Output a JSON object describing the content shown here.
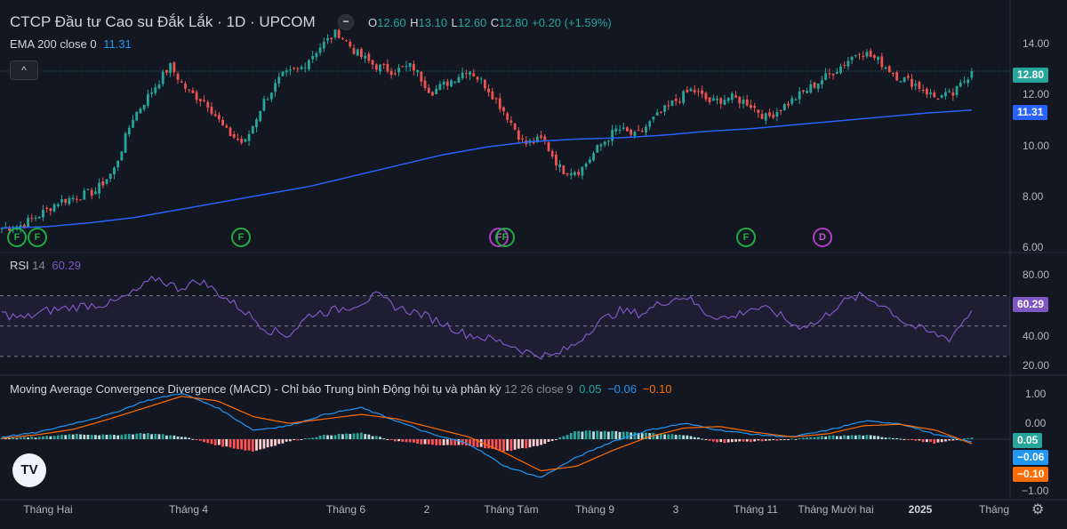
{
  "header": {
    "title": "CTCP Đầu tư Cao su Đắk Lắk · 1D · UPCOM",
    "ohlc": {
      "o_key": "O",
      "o": "12.60",
      "h_key": "H",
      "h": "13.10",
      "l_key": "L",
      "l": "12.60",
      "c_key": "C",
      "c": "12.80",
      "chg": "+0.20 (+1.59%)"
    },
    "ema_label": "EMA 200 close 0",
    "ema_value": "11.31",
    "collapse_icon": "chevron-up-icon",
    "minus_icon": "minus-icon"
  },
  "rsi_panel": {
    "label": "RSI",
    "params": "14",
    "value": "60.29"
  },
  "macd_panel": {
    "label": "Moving Average Convergence Divergence (MACD) - Chỉ báo Trung bình Động hội tụ và phân kỳ",
    "params": "12 26 close 9",
    "hist": "0.05",
    "macd": "−0.06",
    "signal": "−0.10"
  },
  "price_axis": {
    "ticks": [
      "14.00",
      "12.00",
      "10.00",
      "8.00",
      "6.00"
    ],
    "last": "12.80",
    "ema": "11.31"
  },
  "rsi_axis": {
    "ticks": [
      "80.00",
      "40.00",
      "20.00"
    ],
    "last": "60.29"
  },
  "macd_axis": {
    "ticks": [
      "1.00",
      "0.00",
      "−1.00"
    ],
    "hist_pill": "0.05",
    "macd_pill": "−0.06",
    "signal_pill": "−0.10"
  },
  "time_axis": {
    "labels": [
      "Tháng Hai",
      "Tháng 4",
      "Tháng 6",
      "2",
      "Tháng Tám",
      "Tháng 9",
      "3",
      "Tháng 11",
      "Tháng Mười hai",
      "2025",
      "Tháng"
    ]
  },
  "markers": {
    "f": "F",
    "d": "D"
  },
  "logo": {
    "text": "TV"
  },
  "colors": {
    "up": "#26a69a",
    "down": "#ef5350",
    "ema": "#2962ff",
    "rsi": "#7e57c2",
    "macd": "#2196f3",
    "signal": "#ff6d00",
    "bg": "#131722"
  },
  "chart_data": {
    "type": "candlestick",
    "title": "CTCP Đầu tư Cao su Đắk Lắk · 1D · UPCOM",
    "price": {
      "ylim": [
        6,
        14.5
      ],
      "anchors_close": [
        6.8,
        6.9,
        7.3,
        7.8,
        8.0,
        8.2,
        9.0,
        11.0,
        12.0,
        13.0,
        12.0,
        11.6,
        10.5,
        10.0,
        11.6,
        12.6,
        12.9,
        13.7,
        14.3,
        13.5,
        13.0,
        12.8,
        13.0,
        12.0,
        12.4,
        12.9,
        12.2,
        11.2,
        10.0,
        10.2,
        9.0,
        9.0,
        9.9,
        10.6,
        10.3,
        11.0,
        11.6,
        12.1,
        11.6,
        11.8,
        11.6,
        11.0,
        11.5,
        12.0,
        12.5,
        13.0,
        13.6,
        13.2,
        12.6,
        12.3,
        11.8,
        11.9,
        12.8
      ],
      "last_close": 12.8
    },
    "ema200": {
      "name": "EMA 200 close 0",
      "anchors": [
        6.8,
        6.85,
        7.0,
        7.2,
        7.5,
        7.8,
        8.1,
        8.4,
        8.8,
        9.2,
        9.6,
        9.9,
        10.1,
        10.2,
        10.25,
        10.35,
        10.5,
        10.6,
        10.75,
        10.9,
        11.05,
        11.2,
        11.31
      ]
    },
    "rsi": {
      "ylim": [
        20,
        95
      ],
      "bands": [
        70,
        50,
        30
      ],
      "anchors": [
        58,
        55,
        60,
        62,
        64,
        65,
        72,
        82,
        75,
        80,
        70,
        60,
        48,
        44,
        58,
        60,
        64,
        70,
        62,
        58,
        52,
        45,
        42,
        38,
        32,
        30,
        38,
        52,
        60,
        58,
        66,
        70,
        58,
        55,
        62,
        60,
        50,
        52,
        65,
        70,
        64,
        52,
        46,
        42,
        60.29
      ],
      "last": 60.29
    },
    "macd": {
      "ylim": [
        -1.3,
        1.3
      ],
      "macd_anchors": [
        0.05,
        0.15,
        0.35,
        0.55,
        0.85,
        1.02,
        0.7,
        0.2,
        0.3,
        0.55,
        0.7,
        0.4,
        0.1,
        -0.1,
        -0.6,
        -0.85,
        -0.4,
        -0.05,
        0.2,
        0.35,
        0.2,
        0.1,
        0.05,
        0.2,
        0.4,
        0.35,
        0.1,
        -0.06
      ],
      "signal_anchors": [
        0.02,
        0.1,
        0.22,
        0.45,
        0.7,
        0.95,
        0.85,
        0.5,
        0.35,
        0.45,
        0.55,
        0.45,
        0.25,
        0.05,
        -0.3,
        -0.7,
        -0.6,
        -0.25,
        0.05,
        0.25,
        0.28,
        0.15,
        0.05,
        0.12,
        0.3,
        0.33,
        0.2,
        -0.1
      ],
      "hist": 0.05,
      "macd_last": -0.06,
      "signal_last": -0.1
    }
  }
}
